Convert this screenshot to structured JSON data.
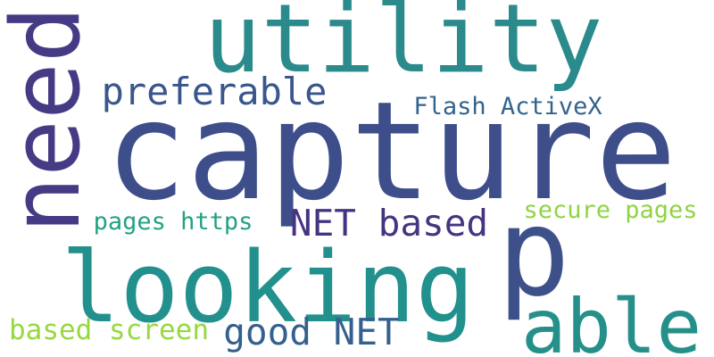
{
  "words": [
    {
      "text": "capture",
      "color": "#3e4e8a"
    },
    {
      "text": "utility",
      "color": "#2a8a8c"
    },
    {
      "text": "need",
      "color": "#443b84"
    },
    {
      "text": "looking",
      "color": "#22908c"
    },
    {
      "text": "p",
      "color": "#3e5089"
    },
    {
      "text": "able",
      "color": "#25908a"
    },
    {
      "text": "preferable",
      "color": "#3a568c"
    },
    {
      "text": "Flash ActiveX",
      "color": "#32648e"
    },
    {
      "text": "NET based",
      "color": "#463480"
    },
    {
      "text": "pages https",
      "color": "#23a183"
    },
    {
      "text": "secure pages",
      "color": "#8fd444"
    },
    {
      "text": "good NET",
      "color": "#355f8d"
    },
    {
      "text": "based screen",
      "color": "#97d83f"
    }
  ]
}
